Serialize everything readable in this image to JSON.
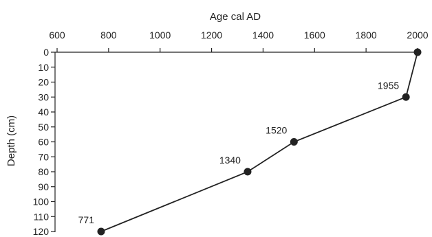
{
  "chart_data": {
    "type": "line",
    "xlabel": "Age cal AD",
    "ylabel": "Depth (cm)",
    "xlim": [
      600,
      2000
    ],
    "ylim": [
      0,
      120
    ],
    "x_axis_position": "top",
    "y_axis_inverted": true,
    "x_ticks": [
      600,
      800,
      1000,
      1200,
      1400,
      1600,
      1800,
      2000
    ],
    "y_ticks": [
      0,
      10,
      20,
      30,
      40,
      50,
      60,
      70,
      80,
      90,
      100,
      110,
      120
    ],
    "grid": false,
    "color": "#222222",
    "points": [
      {
        "x": 2000,
        "y": 0,
        "label": ""
      },
      {
        "x": 1955,
        "y": 30,
        "label": "1955"
      },
      {
        "x": 1520,
        "y": 60,
        "label": "1520"
      },
      {
        "x": 1340,
        "y": 80,
        "label": "1340"
      },
      {
        "x": 771,
        "y": 120,
        "label": "771"
      }
    ]
  }
}
